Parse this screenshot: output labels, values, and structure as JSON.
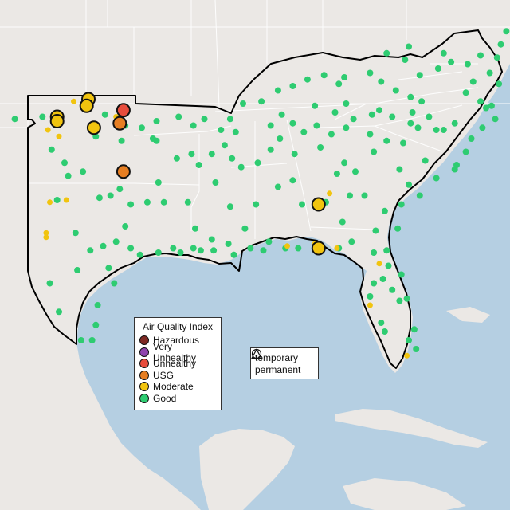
{
  "legend": {
    "title": "Air Quality Index",
    "categories": [
      {
        "label": "Hazardous",
        "color": "#7e2a24"
      },
      {
        "label": "Very Unhealthy",
        "color": "#8e44ad"
      },
      {
        "label": "Unhealthy",
        "color": "#e74c3c"
      },
      {
        "label": "USG",
        "color": "#e67e22"
      },
      {
        "label": "Moderate",
        "color": "#f1c40f"
      },
      {
        "label": "Good",
        "color": "#2ecc71"
      }
    ]
  },
  "shape_legend": {
    "items": [
      {
        "label": "temporary",
        "icon": "circle-icon"
      },
      {
        "label": "permanent",
        "icon": "triangle-icon"
      }
    ]
  },
  "colors": {
    "land": "#ebe8e5",
    "water": "#b5cfe2",
    "state_border": "#ffffff",
    "region_outline": "#000000"
  },
  "monitors": {
    "unhealthy": [
      [
        -96.0,
        36.7
      ]
    ],
    "usg": [
      [
        -96.2,
        36.1
      ],
      [
        -96.0,
        33.9
      ]
    ],
    "moderate_large": [
      [
        -97.9,
        37.2
      ],
      [
        -98.0,
        36.9
      ],
      [
        -99.6,
        36.4
      ],
      [
        -99.6,
        36.2
      ],
      [
        -97.6,
        35.9
      ],
      [
        -85.4,
        32.4
      ],
      [
        -85.4,
        30.4
      ]
    ],
    "moderate_small": [
      [
        -98.7,
        37.1
      ],
      [
        -100.1,
        35.8
      ],
      [
        -99.5,
        35.5
      ],
      [
        -96.4,
        36.4
      ],
      [
        -100.0,
        32.5
      ],
      [
        -100.2,
        31.1
      ],
      [
        -100.2,
        30.9
      ],
      [
        -99.1,
        32.6
      ],
      [
        -87.1,
        30.5
      ],
      [
        -85.6,
        30.6
      ],
      [
        -84.4,
        30.4
      ],
      [
        -84.8,
        32.9
      ],
      [
        -82.1,
        29.7
      ],
      [
        -82.6,
        27.8
      ],
      [
        -80.6,
        25.5
      ]
    ],
    "good": [
      [
        -101.9,
        36.3
      ],
      [
        -100.4,
        36.4
      ],
      [
        -99.9,
        34.9
      ],
      [
        -99.2,
        34.3
      ],
      [
        -99.0,
        33.7
      ],
      [
        -98.2,
        33.9
      ],
      [
        -99.6,
        32.6
      ],
      [
        -98.6,
        31.1
      ],
      [
        -97.8,
        30.3
      ],
      [
        -97.1,
        30.5
      ],
      [
        -96.4,
        30.7
      ],
      [
        -95.6,
        30.4
      ],
      [
        -95.1,
        30.1
      ],
      [
        -94.1,
        30.2
      ],
      [
        -93.3,
        30.4
      ],
      [
        -92.9,
        30.2
      ],
      [
        -92.2,
        30.4
      ],
      [
        -91.8,
        30.3
      ],
      [
        -91.1,
        30.3
      ],
      [
        -91.2,
        30.8
      ],
      [
        -90.3,
        30.6
      ],
      [
        -90.0,
        30.1
      ],
      [
        -89.1,
        30.4
      ],
      [
        -88.4,
        30.3
      ],
      [
        -88.1,
        30.7
      ],
      [
        -87.2,
        30.4
      ],
      [
        -86.5,
        30.4
      ],
      [
        -84.3,
        30.4
      ],
      [
        -83.6,
        30.7
      ],
      [
        -82.4,
        30.2
      ],
      [
        -81.7,
        30.3
      ],
      [
        -81.6,
        29.6
      ],
      [
        -81.9,
        29.0
      ],
      [
        -82.4,
        28.8
      ],
      [
        -82.6,
        28.2
      ],
      [
        -81.4,
        28.5
      ],
      [
        -80.9,
        29.2
      ],
      [
        -81.0,
        28.0
      ],
      [
        -80.6,
        28.1
      ],
      [
        -82.0,
        27.0
      ],
      [
        -81.8,
        26.6
      ],
      [
        -80.5,
        26.2
      ],
      [
        -80.2,
        26.7
      ],
      [
        -80.1,
        25.8
      ],
      [
        -81.1,
        31.3
      ],
      [
        -81.8,
        32.1
      ],
      [
        -80.9,
        32.4
      ],
      [
        -79.9,
        32.8
      ],
      [
        -79.0,
        33.6
      ],
      [
        -78.0,
        34.0
      ],
      [
        -77.4,
        34.8
      ],
      [
        -77.1,
        35.4
      ],
      [
        -76.5,
        35.9
      ],
      [
        -76.3,
        36.8
      ],
      [
        -77.4,
        37.5
      ],
      [
        -77.0,
        38.0
      ],
      [
        -77.3,
        38.8
      ],
      [
        -78.2,
        38.9
      ],
      [
        -78.9,
        38.6
      ],
      [
        -79.9,
        38.3
      ],
      [
        -80.4,
        37.3
      ],
      [
        -81.2,
        37.6
      ],
      [
        -82.0,
        38.0
      ],
      [
        -82.6,
        38.4
      ],
      [
        -84.0,
        38.2
      ],
      [
        -85.1,
        38.3
      ],
      [
        -86.0,
        38.1
      ],
      [
        -86.8,
        37.8
      ],
      [
        -87.6,
        37.6
      ],
      [
        -88.5,
        37.1
      ],
      [
        -89.5,
        37.0
      ],
      [
        -90.2,
        36.3
      ],
      [
        -89.9,
        35.7
      ],
      [
        -90.5,
        35.1
      ],
      [
        -90.1,
        34.5
      ],
      [
        -89.6,
        34.1
      ],
      [
        -88.7,
        34.3
      ],
      [
        -88.0,
        34.9
      ],
      [
        -87.5,
        35.4
      ],
      [
        -86.8,
        36.1
      ],
      [
        -86.2,
        35.7
      ],
      [
        -85.3,
        35.0
      ],
      [
        -84.7,
        35.6
      ],
      [
        -83.9,
        35.9
      ],
      [
        -82.6,
        35.6
      ],
      [
        -81.7,
        35.3
      ],
      [
        -80.8,
        35.2
      ],
      [
        -80.0,
        35.9
      ],
      [
        -79.0,
        35.8
      ],
      [
        -78.6,
        35.8
      ],
      [
        -78.0,
        36.1
      ],
      [
        -79.4,
        36.4
      ],
      [
        -80.3,
        36.6
      ],
      [
        -81.4,
        36.4
      ],
      [
        -82.5,
        36.5
      ],
      [
        -83.5,
        36.3
      ],
      [
        -84.5,
        36.6
      ],
      [
        -85.6,
        36.9
      ],
      [
        -87.4,
        36.5
      ],
      [
        -88.0,
        36.0
      ],
      [
        -86.7,
        34.7
      ],
      [
        -86.8,
        33.5
      ],
      [
        -87.6,
        33.2
      ],
      [
        -88.8,
        32.4
      ],
      [
        -89.4,
        31.3
      ],
      [
        -90.2,
        32.3
      ],
      [
        -91.0,
        33.4
      ],
      [
        -91.9,
        34.2
      ],
      [
        -92.3,
        34.7
      ],
      [
        -93.1,
        34.5
      ],
      [
        -94.1,
        33.4
      ],
      [
        -94.4,
        35.4
      ],
      [
        -92.5,
        32.5
      ],
      [
        -92.1,
        31.3
      ],
      [
        -93.8,
        32.5
      ],
      [
        -86.3,
        32.4
      ],
      [
        -85.0,
        32.5
      ],
      [
        -84.4,
        33.8
      ],
      [
        -84.0,
        34.3
      ],
      [
        -83.4,
        33.9
      ],
      [
        -82.9,
        32.8
      ],
      [
        -83.7,
        32.8
      ],
      [
        -84.1,
        31.6
      ],
      [
        -82.3,
        31.2
      ],
      [
        -81.0,
        34.0
      ],
      [
        -82.4,
        34.8
      ],
      [
        -80.5,
        33.3
      ],
      [
        -79.6,
        34.4
      ],
      [
        -96.7,
        32.8
      ],
      [
        -97.3,
        32.7
      ],
      [
        -96.2,
        33.1
      ],
      [
        -95.6,
        32.4
      ],
      [
        -94.7,
        32.5
      ],
      [
        -95.9,
        31.4
      ],
      [
        -96.5,
        28.8
      ],
      [
        -97.4,
        27.8
      ],
      [
        -97.5,
        26.9
      ],
      [
        -97.7,
        26.2
      ],
      [
        -98.3,
        26.2
      ],
      [
        -99.5,
        27.5
      ],
      [
        -100.0,
        28.8
      ],
      [
        -96.8,
        29.5
      ],
      [
        -98.5,
        29.4
      ],
      [
        -97.0,
        36.5
      ],
      [
        -97.5,
        35.5
      ],
      [
        -96.1,
        35.3
      ],
      [
        -95.9,
        36.0
      ],
      [
        -95.0,
        35.9
      ],
      [
        -94.2,
        36.2
      ],
      [
        -93.0,
        36.4
      ],
      [
        -92.2,
        36.0
      ],
      [
        -91.6,
        36.3
      ],
      [
        -90.7,
        35.8
      ],
      [
        -91.2,
        34.7
      ],
      [
        -94.2,
        35.3
      ],
      [
        -84.3,
        37.9
      ],
      [
        -83.9,
        37.0
      ],
      [
        -85.5,
        36.0
      ],
      [
        -79.8,
        37.1
      ],
      [
        -80.4,
        36.1
      ],
      [
        -77.9,
        34.2
      ],
      [
        -75.8,
        36.3
      ],
      [
        -76.0,
        36.9
      ],
      [
        -76.6,
        37.1
      ],
      [
        -75.6,
        37.9
      ],
      [
        -76.1,
        38.4
      ],
      [
        -76.6,
        39.2
      ],
      [
        -75.5,
        39.7
      ],
      [
        -75.2,
        40.3
      ],
      [
        -75.7,
        39.1
      ],
      [
        -78.6,
        39.3
      ],
      [
        -80.5,
        39.6
      ],
      [
        -81.7,
        39.3
      ],
      [
        -80.7,
        39.0
      ],
      [
        -82.1,
        36.7
      ]
    ]
  }
}
